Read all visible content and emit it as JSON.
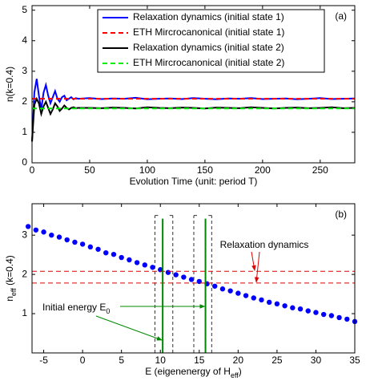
{
  "chart_data": [
    {
      "type": "line",
      "annotation": "(a)",
      "xlabel": "Evolution Time (unit: period T)",
      "ylabel": "n(k=0.4)",
      "xlim": [
        0,
        280
      ],
      "ylim": [
        0,
        5.15
      ],
      "xticks": [
        0,
        50,
        100,
        150,
        200,
        250
      ],
      "yticks": [
        0,
        1,
        2,
        3,
        4,
        5
      ],
      "x": [
        0,
        2,
        4,
        6,
        8,
        10,
        12,
        14,
        16,
        18,
        20,
        22,
        24,
        26,
        28,
        30,
        32,
        34,
        36,
        38,
        40,
        50,
        60,
        70,
        80,
        90,
        100,
        110,
        120,
        130,
        140,
        150,
        160,
        170,
        180,
        190,
        200,
        210,
        220,
        230,
        240,
        250,
        260,
        270,
        280
      ],
      "series": [
        {
          "name": "Relaxation dynamics (initial state 1)",
          "color": "#0000ff",
          "dash": false,
          "values": [
            0.7,
            2.3,
            2.75,
            2.2,
            1.75,
            2.3,
            2.55,
            2.2,
            1.95,
            2.15,
            2.35,
            2.1,
            2.0,
            2.15,
            2.2,
            2.05,
            2.1,
            2.15,
            2.08,
            2.12,
            2.1,
            2.12,
            2.09,
            2.11,
            2.1,
            2.13,
            2.08,
            2.1,
            2.11,
            2.09,
            2.12,
            2.1,
            2.08,
            2.11,
            2.1,
            2.12,
            2.09,
            2.1,
            2.11,
            2.08,
            2.1,
            2.12,
            2.09,
            2.1,
            2.11
          ]
        },
        {
          "name": "ETH Mircrocanonical (initial state 1)",
          "color": "#ff0000",
          "dash": true,
          "values": [
            2.1,
            2.1,
            2.1,
            2.1,
            2.1,
            2.1,
            2.1,
            2.1,
            2.1,
            2.1,
            2.1,
            2.1,
            2.1,
            2.1,
            2.1,
            2.1,
            2.1,
            2.1,
            2.1,
            2.1,
            2.1,
            2.1,
            2.1,
            2.1,
            2.1,
            2.1,
            2.1,
            2.1,
            2.1,
            2.1,
            2.1,
            2.1,
            2.1,
            2.1,
            2.1,
            2.1,
            2.1,
            2.1,
            2.1,
            2.1,
            2.1,
            2.1,
            2.1,
            2.1,
            2.1
          ]
        },
        {
          "name": "Relaxation dynamics (initial state 2)",
          "color": "#000000",
          "dash": false,
          "values": [
            0.7,
            1.9,
            2.1,
            1.95,
            1.6,
            1.85,
            2.0,
            1.8,
            1.6,
            1.75,
            1.95,
            1.85,
            1.7,
            1.78,
            1.88,
            1.8,
            1.75,
            1.8,
            1.82,
            1.79,
            1.8,
            1.8,
            1.79,
            1.81,
            1.8,
            1.78,
            1.82,
            1.8,
            1.79,
            1.81,
            1.8,
            1.78,
            1.81,
            1.8,
            1.79,
            1.82,
            1.8,
            1.78,
            1.8,
            1.81,
            1.79,
            1.8,
            1.82,
            1.79,
            1.8
          ]
        },
        {
          "name": "ETH Mircrocanonical (initial state 2)",
          "color": "#00ee00",
          "dash": true,
          "values": [
            1.78,
            1.78,
            1.78,
            1.78,
            1.78,
            1.78,
            1.78,
            1.78,
            1.78,
            1.78,
            1.78,
            1.78,
            1.78,
            1.78,
            1.78,
            1.78,
            1.78,
            1.78,
            1.78,
            1.78,
            1.78,
            1.78,
            1.78,
            1.78,
            1.78,
            1.78,
            1.78,
            1.78,
            1.78,
            1.78,
            1.78,
            1.78,
            1.78,
            1.78,
            1.78,
            1.78,
            1.78,
            1.78,
            1.78,
            1.78,
            1.78,
            1.78,
            1.78,
            1.78,
            1.78
          ]
        }
      ]
    },
    {
      "type": "scatter",
      "annotation": "(b)",
      "color": "#0000ff",
      "xlabel": [
        "E (eigenenergy of H",
        "eff",
        ")"
      ],
      "ylabel": [
        "n",
        "eff",
        " (k=0.4)"
      ],
      "xlim": [
        -6.5,
        35
      ],
      "ylim": [
        0,
        3.8
      ],
      "xticks": [
        -5,
        0,
        5,
        10,
        15,
        20,
        25,
        30,
        35
      ],
      "yticks": [
        1,
        2,
        3
      ],
      "x": [
        -7,
        -6,
        -5,
        -4,
        -3,
        -2,
        -1,
        0,
        1,
        2,
        3,
        4,
        5,
        6,
        7,
        8,
        9,
        10,
        11,
        12,
        13,
        14,
        15,
        16,
        17,
        18,
        19,
        20,
        21,
        22,
        23,
        24,
        25,
        26,
        27,
        28,
        29,
        30,
        31,
        32,
        33,
        34,
        35
      ],
      "values": [
        3.22,
        3.13,
        3.08,
        3.0,
        2.95,
        2.88,
        2.82,
        2.77,
        2.7,
        2.64,
        2.55,
        2.51,
        2.43,
        2.37,
        2.3,
        2.24,
        2.18,
        2.12,
        2.05,
        1.99,
        1.93,
        1.87,
        1.82,
        1.76,
        1.7,
        1.63,
        1.58,
        1.52,
        1.46,
        1.4,
        1.35,
        1.29,
        1.25,
        1.2,
        1.15,
        1.12,
        1.07,
        1.03,
        0.98,
        0.95,
        0.9,
        0.86,
        0.8
      ],
      "hlines": {
        "values": [
          2.08,
          1.78
        ],
        "color": "#dd0000",
        "label": "Relaxation dynamics"
      },
      "vlines": {
        "values": [
          10.3,
          15.8
        ],
        "color": "#008800",
        "label": [
          "Initial energy E",
          "0"
        ]
      },
      "windows": [
        [
          9.3,
          11.6
        ],
        [
          14.3,
          16.6
        ]
      ],
      "window_top": 3.5
    }
  ]
}
